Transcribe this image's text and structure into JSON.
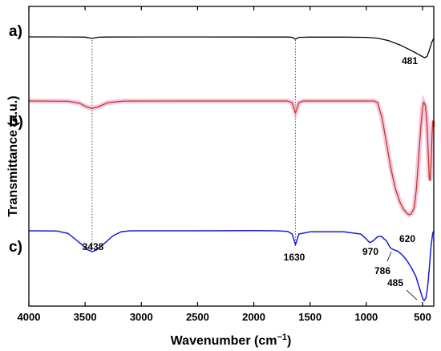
{
  "chart_data": {
    "type": "line",
    "xlabel": "Wavenumber (cm",
    "xlabel_sup": "−1",
    "xlabel_tail": ")",
    "ylabel": "Transmittance (a.u.)",
    "xlim": [
      4000,
      400
    ],
    "x_reversed": true,
    "xticks": [
      4000,
      3500,
      3000,
      2500,
      2000,
      1500,
      1000,
      500
    ],
    "yticks_labeled": false,
    "grid": false,
    "guide_lines_at": [
      3438,
      1630
    ],
    "series": [
      {
        "name": "a)",
        "color": "#000000",
        "points": [
          [
            4000,
            0.0
          ],
          [
            3700,
            -0.01
          ],
          [
            3500,
            -0.05
          ],
          [
            3438,
            -0.35
          ],
          [
            3380,
            -0.08
          ],
          [
            3300,
            -0.03
          ],
          [
            3000,
            -0.02
          ],
          [
            2500,
            -0.02
          ],
          [
            2000,
            -0.03
          ],
          [
            1700,
            -0.04
          ],
          [
            1660,
            -0.1
          ],
          [
            1630,
            -0.55
          ],
          [
            1600,
            -0.12
          ],
          [
            1500,
            -0.06
          ],
          [
            1200,
            -0.06
          ],
          [
            1000,
            -0.12
          ],
          [
            900,
            -0.3
          ],
          [
            800,
            -0.9
          ],
          [
            700,
            -1.9
          ],
          [
            600,
            -3.2
          ],
          [
            530,
            -4.2
          ],
          [
            495,
            -4.75
          ],
          [
            481,
            -4.9
          ],
          [
            460,
            -4.6
          ],
          [
            440,
            -3.2
          ],
          [
            420,
            -1.4
          ],
          [
            400,
            -0.3
          ]
        ]
      },
      {
        "name": "b)",
        "color": "#c0392b",
        "points": [
          [
            4000,
            0.0
          ],
          [
            3650,
            -0.05
          ],
          [
            3550,
            -0.4
          ],
          [
            3480,
            -1.1
          ],
          [
            3438,
            -1.3
          ],
          [
            3380,
            -1.0
          ],
          [
            3300,
            -0.3
          ],
          [
            3200,
            -0.1
          ],
          [
            3150,
            -0.02
          ],
          [
            2500,
            0.0
          ],
          [
            2000,
            0.0
          ],
          [
            1700,
            0.0
          ],
          [
            1660,
            -0.3
          ],
          [
            1630,
            -2.1
          ],
          [
            1600,
            -0.3
          ],
          [
            1560,
            0.0
          ],
          [
            1000,
            0.0
          ],
          [
            930,
            0.0
          ],
          [
            900,
            -0.3
          ],
          [
            860,
            -3.0
          ],
          [
            820,
            -7.5
          ],
          [
            780,
            -12.0
          ],
          [
            740,
            -15.5
          ],
          [
            700,
            -17.8
          ],
          [
            670,
            -19.0
          ],
          [
            640,
            -19.7
          ],
          [
            620,
            -20.0
          ],
          [
            600,
            -19.8
          ],
          [
            575,
            -18.8
          ],
          [
            555,
            -15.5
          ],
          [
            535,
            -10.0
          ],
          [
            515,
            -4.5
          ],
          [
            500,
            -1.3
          ],
          [
            490,
            -0.2
          ],
          [
            475,
            -0.8
          ],
          [
            462,
            -3.5
          ],
          [
            450,
            -9.0
          ],
          [
            440,
            -13.5
          ],
          [
            432,
            -14.0
          ],
          [
            424,
            -11.0
          ],
          [
            416,
            -6.0
          ],
          [
            408,
            -3.5
          ],
          [
            400,
            -4.5
          ]
        ]
      },
      {
        "name": "c)",
        "color": "#1a1adb",
        "points": [
          [
            4000,
            0.0
          ],
          [
            3750,
            -0.05
          ],
          [
            3650,
            -0.5
          ],
          [
            3550,
            -2.2
          ],
          [
            3480,
            -3.5
          ],
          [
            3438,
            -3.9
          ],
          [
            3400,
            -3.6
          ],
          [
            3320,
            -2.2
          ],
          [
            3250,
            -0.9
          ],
          [
            3180,
            -0.2
          ],
          [
            3100,
            0.0
          ],
          [
            2500,
            0.0
          ],
          [
            2000,
            0.05
          ],
          [
            1800,
            0.0
          ],
          [
            1700,
            -0.1
          ],
          [
            1660,
            -0.6
          ],
          [
            1630,
            -2.6
          ],
          [
            1600,
            -0.6
          ],
          [
            1500,
            -0.2
          ],
          [
            1200,
            -0.2
          ],
          [
            1050,
            -0.6
          ],
          [
            1000,
            -1.5
          ],
          [
            970,
            -2.2
          ],
          [
            940,
            -1.9
          ],
          [
            900,
            -1.1
          ],
          [
            870,
            -1.0
          ],
          [
            820,
            -1.9
          ],
          [
            786,
            -3.2
          ],
          [
            760,
            -3.5
          ],
          [
            720,
            -3.8
          ],
          [
            680,
            -4.5
          ],
          [
            640,
            -5.5
          ],
          [
            600,
            -6.8
          ],
          [
            560,
            -8.5
          ],
          [
            530,
            -10.5
          ],
          [
            505,
            -12.2
          ],
          [
            495,
            -12.8
          ],
          [
            485,
            -13.0
          ],
          [
            470,
            -12.5
          ],
          [
            455,
            -10.5
          ],
          [
            440,
            -7.0
          ],
          [
            425,
            -3.0
          ],
          [
            410,
            -0.5
          ],
          [
            400,
            0.0
          ]
        ]
      }
    ],
    "peak_labels": [
      {
        "text": "481",
        "series": "a)",
        "x": 481
      },
      {
        "text": "620",
        "series": "b)",
        "x": 620
      },
      {
        "text": "3438",
        "series": "c)",
        "x": 3438
      },
      {
        "text": "1630",
        "series": "c)",
        "x": 1630
      },
      {
        "text": "970",
        "series": "c)",
        "x": 970
      },
      {
        "text": "786",
        "series": "c)",
        "x": 786
      },
      {
        "text": "485",
        "series": "c)",
        "x": 485
      }
    ]
  }
}
